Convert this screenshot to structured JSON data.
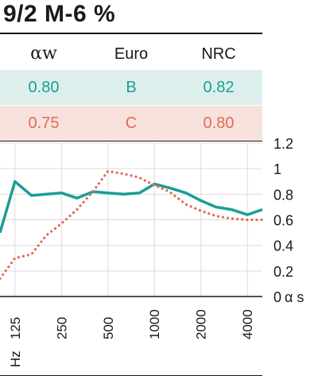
{
  "title": "9/2 M-6 %",
  "table": {
    "headers": [
      "αw",
      "Euro",
      "NRC"
    ],
    "rows": [
      {
        "values": [
          "0.80",
          "B",
          "0.82"
        ],
        "color": "#1a9e95",
        "bg": "#dcefed"
      },
      {
        "values": [
          "0.75",
          "C",
          "0.80"
        ],
        "color": "#e46a57",
        "bg": "#f6e1dc"
      }
    ]
  },
  "chart_data": {
    "type": "line",
    "xlabel": "Hz",
    "ylabel": "α s",
    "ylim": [
      0,
      1.2
    ],
    "x_tick_labels": [
      "125",
      "250",
      "500",
      "1000",
      "2000",
      "4000"
    ],
    "y_tick_labels": [
      "1.2",
      "1",
      "0.8",
      "0.6",
      "0.4",
      "0.2",
      "0"
    ],
    "y_tick_values": [
      1.2,
      1.0,
      0.8,
      0.6,
      0.4,
      0.2,
      0
    ],
    "grid": true,
    "x": [
      100,
      125,
      160,
      200,
      250,
      315,
      400,
      500,
      630,
      800,
      1000,
      1250,
      1600,
      2000,
      2500,
      3150,
      4000,
      5000
    ],
    "series": [
      {
        "color": "#1a9e95",
        "style": "solid",
        "values": [
          0.5,
          0.9,
          0.79,
          0.8,
          0.81,
          0.77,
          0.82,
          0.81,
          0.8,
          0.81,
          0.88,
          0.85,
          0.81,
          0.75,
          0.7,
          0.68,
          0.64,
          0.68
        ]
      },
      {
        "color": "#e46a57",
        "style": "dotted",
        "values": [
          0.14,
          0.3,
          0.33,
          0.48,
          0.57,
          0.68,
          0.82,
          0.98,
          0.96,
          0.93,
          0.87,
          0.82,
          0.72,
          0.67,
          0.63,
          0.61,
          0.6,
          0.6
        ]
      }
    ]
  }
}
